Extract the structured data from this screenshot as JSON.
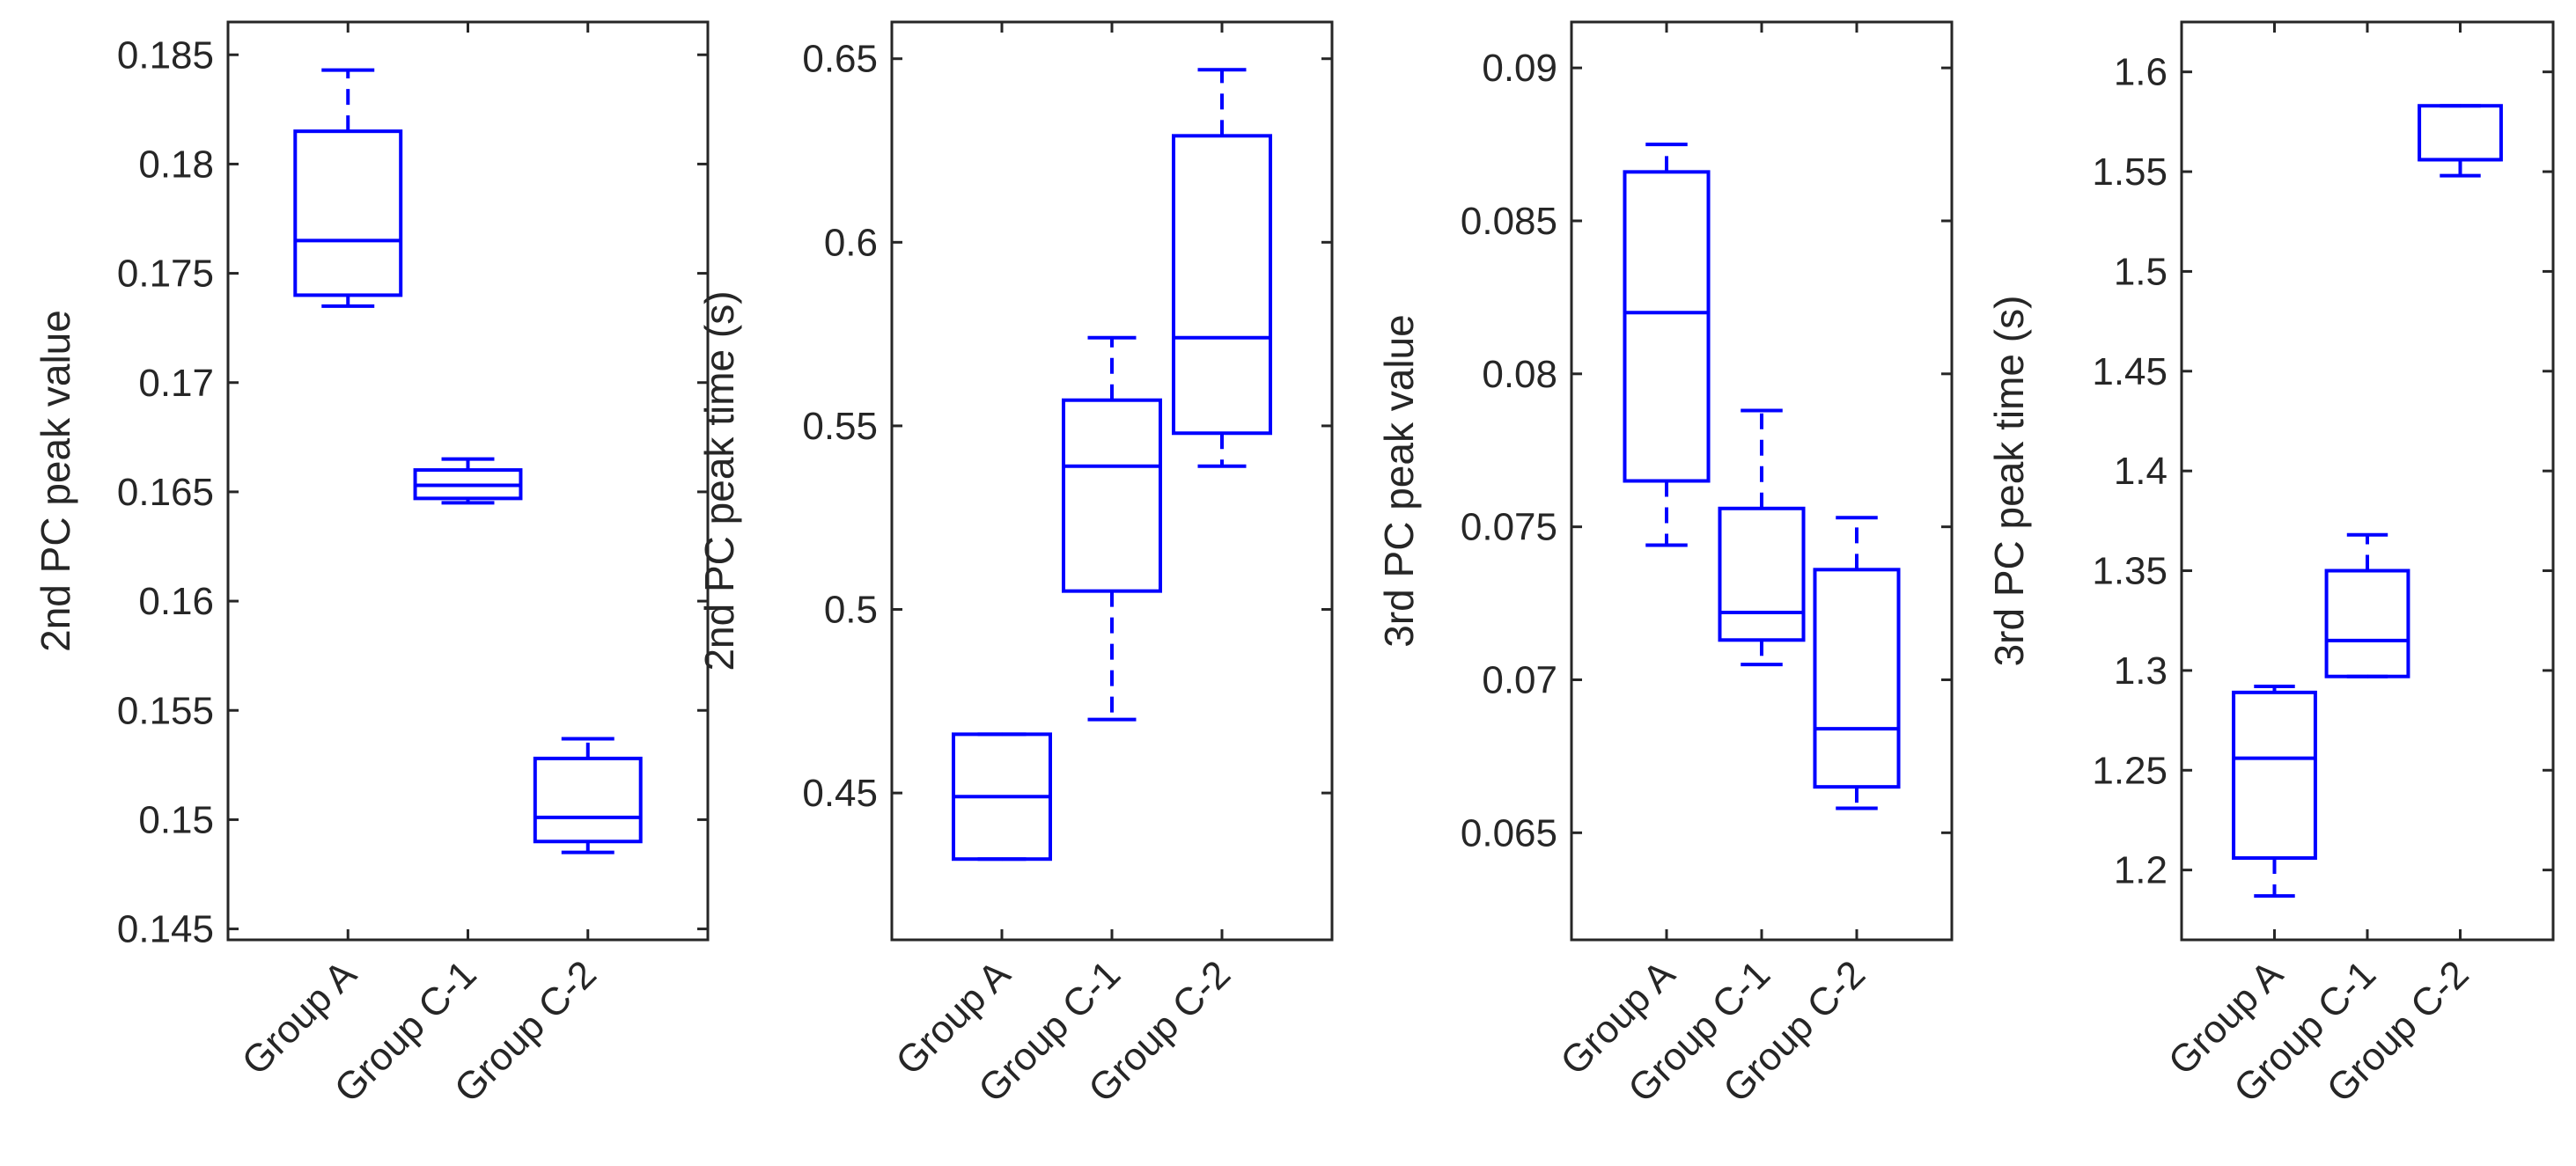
{
  "colors": {
    "box": "#0000ff",
    "axis": "#262626",
    "background": "#ffffff"
  },
  "chart_data": [
    {
      "type": "box",
      "ylabel": "2nd PC peak value",
      "ylim": [
        0.1445,
        0.1865
      ],
      "yticks": [
        0.145,
        0.15,
        0.155,
        0.16,
        0.165,
        0.17,
        0.175,
        0.18,
        0.185
      ],
      "ytick_labels": [
        "0.145",
        "0.15",
        "0.155",
        "0.16",
        "0.165",
        "0.17",
        "0.175",
        "0.18",
        "0.185"
      ],
      "categories": [
        "Group A",
        "Group C-1",
        "Group C-2"
      ],
      "boxes": [
        {
          "min": 0.1735,
          "q1": 0.174,
          "median": 0.1765,
          "q3": 0.1815,
          "max": 0.1843
        },
        {
          "min": 0.1645,
          "q1": 0.1647,
          "median": 0.1653,
          "q3": 0.166,
          "max": 0.1665
        },
        {
          "min": 0.1485,
          "q1": 0.149,
          "median": 0.1501,
          "q3": 0.1528,
          "max": 0.1537
        }
      ]
    },
    {
      "type": "box",
      "ylabel": "2nd PC peak time (s)",
      "ylim": [
        0.41,
        0.66
      ],
      "yticks": [
        0.45,
        0.5,
        0.55,
        0.6,
        0.65
      ],
      "ytick_labels": [
        "0.45",
        "0.5",
        "0.55",
        "0.6",
        "0.65"
      ],
      "categories": [
        "Group A",
        "Group C-1",
        "Group C-2"
      ],
      "boxes": [
        {
          "min": 0.432,
          "q1": 0.432,
          "median": 0.449,
          "q3": 0.466,
          "max": 0.466
        },
        {
          "min": 0.47,
          "q1": 0.505,
          "median": 0.539,
          "q3": 0.557,
          "max": 0.574
        },
        {
          "min": 0.539,
          "q1": 0.548,
          "median": 0.574,
          "q3": 0.629,
          "max": 0.647
        }
      ]
    },
    {
      "type": "box",
      "ylabel": "3rd PC peak value",
      "ylim": [
        0.0615,
        0.0915
      ],
      "yticks": [
        0.065,
        0.07,
        0.075,
        0.08,
        0.085,
        0.09
      ],
      "ytick_labels": [
        "0.065",
        "0.07",
        "0.075",
        "0.08",
        "0.085",
        "0.09"
      ],
      "categories": [
        "Group A",
        "Group C-1",
        "Group C-2"
      ],
      "boxes": [
        {
          "min": 0.0744,
          "q1": 0.0765,
          "median": 0.082,
          "q3": 0.0866,
          "max": 0.0875
        },
        {
          "min": 0.0705,
          "q1": 0.0713,
          "median": 0.0722,
          "q3": 0.0756,
          "max": 0.0788
        },
        {
          "min": 0.0658,
          "q1": 0.0665,
          "median": 0.0684,
          "q3": 0.0736,
          "max": 0.0753
        }
      ]
    },
    {
      "type": "box",
      "ylabel": "3rd PC peak time (s)",
      "ylim": [
        1.165,
        1.625
      ],
      "yticks": [
        1.2,
        1.25,
        1.3,
        1.35,
        1.4,
        1.45,
        1.5,
        1.55,
        1.6
      ],
      "ytick_labels": [
        "1.2",
        "1.25",
        "1.3",
        "1.35",
        "1.4",
        "1.45",
        "1.5",
        "1.55",
        "1.6"
      ],
      "categories": [
        "Group A",
        "Group C-1",
        "Group C-2"
      ],
      "boxes": [
        {
          "min": 1.187,
          "q1": 1.206,
          "median": 1.256,
          "q3": 1.289,
          "max": 1.292
        },
        {
          "min": 1.297,
          "q1": 1.297,
          "median": 1.315,
          "q3": 1.35,
          "max": 1.368
        },
        {
          "min": 1.548,
          "q1": 1.556,
          "median": 1.556,
          "q3": 1.583,
          "max": 1.583
        }
      ]
    }
  ]
}
